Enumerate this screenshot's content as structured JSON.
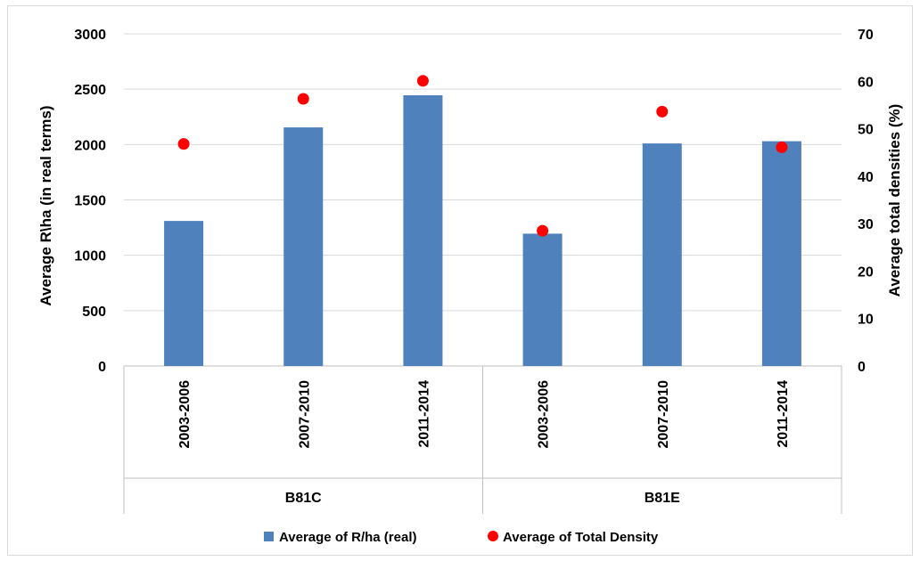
{
  "chart_data": {
    "type": "bar",
    "groups": [
      {
        "label": "B81C",
        "categories": [
          "2003-2006",
          "2007-2010",
          "2011-2014"
        ]
      },
      {
        "label": "B81E",
        "categories": [
          "2003-2006",
          "2007-2010",
          "2011-2014"
        ]
      }
    ],
    "series": [
      {
        "name": "Average of R/ha (real)",
        "kind": "bar",
        "axis": "left",
        "color": "#4f81bd",
        "values": [
          1310,
          2155,
          2445,
          1195,
          2010,
          2030
        ]
      },
      {
        "name": "Average of Total Density",
        "kind": "scatter",
        "axis": "right",
        "color": "#ff0000",
        "values": [
          46.8,
          56.3,
          60.1,
          28.5,
          53.6,
          46.1
        ]
      }
    ],
    "ylabel": "Average R\\ha (in real terms)",
    "y2label": "Average total densities (%)",
    "ylim": [
      0,
      3000
    ],
    "y2lim": [
      0,
      70
    ],
    "yticks": [
      "0",
      "500",
      "1000",
      "1500",
      "2000",
      "2500",
      "3000"
    ],
    "y2ticks": [
      "0",
      "10",
      "20",
      "30",
      "40",
      "50",
      "60",
      "70"
    ],
    "grid": true,
    "legend": "bottom"
  }
}
